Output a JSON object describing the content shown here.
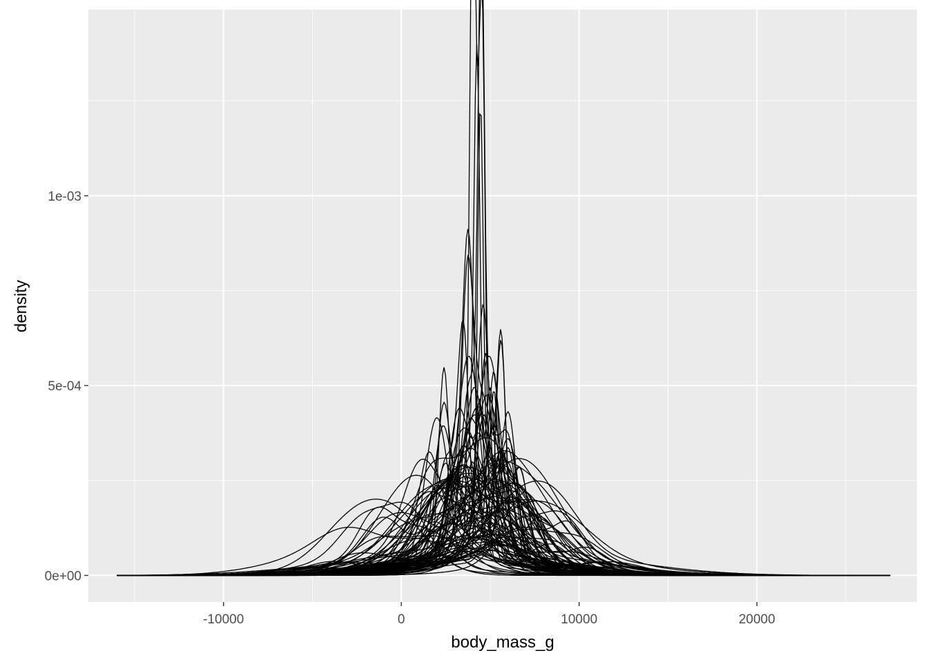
{
  "chart_data": {
    "type": "line",
    "subtype": "density",
    "title": "",
    "xlabel": "body_mass_g",
    "ylabel": "density",
    "xlim": [
      -17600,
      29000
    ],
    "ylim": [
      -7e-05,
      0.00149
    ],
    "x_ticks": [
      -10000,
      0,
      10000,
      20000
    ],
    "x_tick_labels": [
      "-10000",
      "0",
      "10000",
      "20000"
    ],
    "y_ticks": [
      0,
      0.0005,
      0.001
    ],
    "y_tick_labels": [
      "0e+00",
      "5e-04",
      "1e-03"
    ],
    "grid": true,
    "legend": "none",
    "line_color": "#000000",
    "panel_background": "#ebebeb",
    "grid_color": "#ffffff",
    "series_count": 100,
    "x_support": [
      -16000,
      27500
    ],
    "series": [
      {
        "values": [
          [
            4000,
            0.00141
          ],
          [
            4300,
            0.00065
          ],
          [
            4550,
            0.00102
          ]
        ]
      },
      {
        "values": [
          [
            4500,
            0.0013
          ],
          [
            3800,
            0.0004
          ],
          [
            5000,
            0.00035
          ]
        ]
      },
      {
        "values": [
          [
            4250,
            0.00121
          ],
          [
            5000,
            0.00044
          ],
          [
            3500,
            0.0003
          ]
        ]
      },
      {
        "values": [
          [
            4450,
            0.0012
          ],
          [
            5200,
            0.00044
          ],
          [
            6600,
            0.00025
          ]
        ]
      },
      {
        "values": [
          [
            3750,
            0.00085
          ],
          [
            5600,
            0.00057
          ],
          [
            2400,
            0.0004
          ]
        ]
      },
      {
        "values": [
          [
            4600,
            0.00065
          ],
          [
            5600,
            0.00058
          ],
          [
            2400,
            0.0005
          ]
        ]
      },
      {
        "values": [
          [
            3700,
            0.00058
          ],
          [
            4500,
            0.0004
          ],
          [
            6000,
            0.0003
          ]
        ]
      },
      {
        "values": [
          [
            3500,
            0.00052
          ],
          [
            5200,
            0.00048
          ],
          [
            2600,
            0.00025
          ]
        ]
      },
      {
        "values": [
          [
            4800,
            0.00046
          ],
          [
            3900,
            0.00038
          ],
          [
            2000,
            0.00022
          ]
        ]
      },
      {
        "values": [
          [
            4400,
            0.00043
          ],
          [
            6000,
            0.0004
          ],
          [
            3000,
            0.00025
          ]
        ]
      },
      {
        "values": [
          [
            2000,
            0.00038
          ],
          [
            4000,
            0.00026
          ],
          [
            5500,
            0.00028
          ]
        ]
      },
      {
        "values": [
          [
            6000,
            0.00032
          ],
          [
            4000,
            0.00028
          ],
          [
            3000,
            0.00022
          ]
        ]
      },
      {
        "values": [
          [
            3200,
            0.00035
          ],
          [
            4800,
            0.0003
          ],
          [
            6500,
            0.0002
          ]
        ]
      },
      {
        "values": [
          [
            5200,
            0.00034
          ],
          [
            3400,
            0.00025
          ],
          [
            7000,
            0.00018
          ]
        ]
      },
      {
        "values": [
          [
            3900,
            0.00031
          ],
          [
            6000,
            0.00029
          ]
        ]
      },
      {
        "values": [
          [
            4600,
            0.00029
          ],
          [
            2800,
            0.00022
          ],
          [
            6400,
            0.0002
          ]
        ]
      },
      {
        "values": [
          [
            3300,
            0.00027
          ],
          [
            5300,
            0.00025
          ]
        ]
      },
      {
        "values": [
          [
            4200,
            0.00026
          ],
          [
            6000,
            0.00022
          ],
          [
            2200,
            0.00018
          ]
        ]
      },
      {
        "values": [
          [
            2500,
            0.00024
          ],
          [
            4700,
            0.00023
          ],
          [
            6300,
            0.00017
          ]
        ]
      },
      {
        "values": [
          [
            5700,
            0.00023
          ],
          [
            3800,
            0.0002
          ],
          [
            1800,
            0.00015
          ]
        ]
      },
      {
        "values": [
          [
            3000,
            0.00022
          ],
          [
            4900,
            0.00021
          ],
          [
            6700,
            0.00016
          ]
        ]
      },
      {
        "values": [
          [
            4100,
            0.00021
          ],
          [
            2600,
            0.00016
          ],
          [
            5900,
            0.00018
          ]
        ]
      },
      {
        "values": [
          [
            7200,
            0.00019
          ],
          [
            4500,
            0.00016
          ]
        ]
      },
      {
        "values": [
          [
            3600,
            0.00019
          ],
          [
            5500,
            0.00017
          ],
          [
            1500,
            0.00013
          ]
        ]
      },
      {
        "values": [
          [
            4300,
            0.00018
          ],
          [
            6800,
            0.00015
          ]
        ]
      },
      {
        "values": [
          [
            2200,
            0.00017
          ],
          [
            4000,
            0.00016
          ],
          [
            5700,
            0.00014
          ]
        ]
      },
      {
        "values": [
          [
            5000,
            0.00017
          ],
          [
            7500,
            0.00012
          ]
        ]
      },
      {
        "values": [
          [
            3400,
            0.00016
          ],
          [
            6200,
            0.00015
          ]
        ]
      },
      {
        "values": [
          [
            1800,
            0.00016
          ],
          [
            4600,
            0.00014
          ]
        ]
      },
      {
        "values": [
          [
            3800,
            0.00015
          ],
          [
            5800,
            0.00014
          ],
          [
            8000,
            0.0001
          ]
        ]
      },
      {
        "values": [
          [
            4400,
            0.00015
          ],
          [
            2000,
            0.00012
          ]
        ]
      },
      {
        "values": [
          [
            6100,
            0.00014
          ],
          [
            3300,
            0.00013
          ]
        ]
      },
      {
        "values": [
          [
            2800,
            0.00014
          ],
          [
            5100,
            0.00013
          ]
        ]
      },
      {
        "values": [
          [
            4900,
            0.00013
          ],
          [
            7000,
            0.00011
          ]
        ]
      },
      {
        "values": [
          [
            3600,
            0.00013
          ],
          [
            1200,
            0.0001
          ]
        ]
      },
      {
        "values": [
          [
            7300,
            0.00018
          ],
          [
            5000,
            0.00012
          ]
        ]
      },
      {
        "values": [
          [
            8500,
            0.00014
          ],
          [
            6000,
            0.00012
          ]
        ]
      },
      {
        "values": [
          [
            8000,
            0.00012
          ],
          [
            5200,
            0.00013
          ]
        ]
      },
      {
        "values": [
          [
            9000,
            0.00011
          ],
          [
            6500,
            0.0001
          ]
        ]
      },
      {
        "values": [
          [
            7800,
            0.00011
          ],
          [
            4500,
            9e-05
          ]
        ]
      },
      {
        "values": [
          [
            8800,
            0.0001
          ],
          [
            6200,
            9e-05
          ]
        ]
      },
      {
        "values": [
          [
            -2500,
            0.00011
          ],
          [
            0,
            0.0001
          ]
        ]
      },
      {
        "values": [
          [
            0,
            0.00015
          ],
          [
            1800,
            0.00012
          ]
        ]
      },
      {
        "values": [
          [
            -2000,
            0.00012
          ],
          [
            500,
            0.00013
          ]
        ]
      },
      {
        "values": [
          [
            -1000,
            0.00012
          ],
          [
            2000,
            0.00011
          ]
        ]
      },
      {
        "values": [
          [
            -1500,
            0.0001
          ],
          [
            1000,
            0.0001
          ]
        ]
      },
      {
        "values": [
          [
            2500,
            0.00011
          ],
          [
            4200,
            0.0001
          ]
        ]
      },
      {
        "values": [
          [
            1500,
            0.00012
          ],
          [
            3500,
            0.00011
          ]
        ]
      },
      {
        "values": [
          [
            3000,
            0.00011
          ],
          [
            5500,
            0.0001
          ]
        ]
      },
      {
        "values": [
          [
            4700,
            0.00011
          ],
          [
            6800,
            0.0001
          ]
        ]
      },
      {
        "values": [
          [
            5600,
            0.0001
          ],
          [
            3200,
            9e-05
          ]
        ]
      },
      {
        "values": [
          [
            2200,
            0.0001
          ],
          [
            4300,
            9e-05
          ]
        ]
      },
      {
        "values": [
          [
            6400,
            0.0001
          ],
          [
            8200,
            8e-05
          ]
        ]
      },
      {
        "values": [
          [
            1000,
            9e-05
          ],
          [
            3600,
            9e-05
          ]
        ]
      },
      {
        "values": [
          [
            4000,
            9e-05
          ],
          [
            6000,
            8e-05
          ]
        ]
      },
      {
        "values": [
          [
            -500,
            9e-05
          ],
          [
            2600,
            8e-05
          ]
        ]
      },
      {
        "values": [
          [
            5300,
            9e-05
          ],
          [
            7600,
            8e-05
          ]
        ]
      },
      {
        "values": [
          [
            3400,
            8e-05
          ],
          [
            5000,
            8e-05
          ]
        ]
      },
      {
        "values": [
          [
            2000,
            8e-05
          ],
          [
            4500,
            8e-05
          ]
        ]
      },
      {
        "values": [
          [
            7000,
            8e-05
          ],
          [
            9500,
            7e-05
          ]
        ]
      },
      {
        "values": [
          [
            4200,
            8e-05
          ],
          [
            6600,
            7e-05
          ]
        ]
      },
      {
        "values": [
          [
            1200,
            8e-05
          ],
          [
            3000,
            7e-05
          ]
        ]
      },
      {
        "values": [
          [
            5800,
            7e-05
          ],
          [
            3800,
            7e-05
          ]
        ]
      },
      {
        "values": [
          [
            4600,
            7e-05
          ],
          [
            8400,
            6e-05
          ]
        ]
      },
      {
        "values": [
          [
            2600,
            7e-05
          ],
          [
            5400,
            7e-05
          ]
        ]
      },
      {
        "values": [
          [
            3600,
            7e-05
          ],
          [
            6200,
            6e-05
          ]
        ]
      },
      {
        "values": [
          [
            -3000,
            6e-05
          ],
          [
            1500,
            6e-05
          ]
        ]
      },
      {
        "values": [
          [
            6800,
            6e-05
          ],
          [
            10000,
            5e-05
          ]
        ]
      },
      {
        "values": [
          [
            4400,
            6e-05
          ],
          [
            2200,
            6e-05
          ]
        ]
      },
      {
        "values": [
          [
            5000,
            6e-05
          ],
          [
            7800,
            5e-05
          ]
        ]
      },
      {
        "values": [
          [
            3000,
            6e-05
          ],
          [
            500,
            5e-05
          ]
        ]
      },
      {
        "values": [
          [
            4800,
            5e-05
          ],
          [
            8800,
            5e-05
          ]
        ]
      },
      {
        "values": [
          [
            1800,
            5e-05
          ],
          [
            -1500,
            5e-05
          ]
        ]
      },
      {
        "values": [
          [
            6000,
            5e-05
          ],
          [
            10500,
            4e-05
          ]
        ]
      },
      {
        "values": [
          [
            3800,
            5e-05
          ],
          [
            -500,
            4e-05
          ]
        ]
      },
      {
        "values": [
          [
            5400,
            4e-05
          ],
          [
            9800,
            4e-05
          ]
        ]
      },
      {
        "values": [
          [
            2800,
            4e-05
          ],
          [
            -2500,
            4e-05
          ]
        ]
      },
      {
        "values": [
          [
            4300,
            4e-05
          ]
        ]
      },
      {
        "values": [
          [
            5600,
            4e-05
          ],
          [
            11000,
            3e-05
          ]
        ]
      },
      {
        "values": [
          [
            3200,
            4e-05
          ],
          [
            -3500,
            3e-05
          ]
        ]
      },
      {
        "values": [
          [
            4900,
            3e-05
          ],
          [
            12000,
            3e-05
          ]
        ]
      },
      {
        "values": [
          [
            3600,
            3e-05
          ],
          [
            -4000,
            3e-05
          ]
        ]
      },
      {
        "values": [
          [
            4500,
            3e-05
          ]
        ]
      },
      {
        "values": [
          [
            4100,
            3e-05
          ],
          [
            11500,
            2e-05
          ]
        ]
      },
      {
        "values": [
          [
            4700,
            2e-05
          ],
          [
            -5000,
            2e-05
          ]
        ]
      },
      {
        "values": [
          [
            4200,
            2e-05
          ]
        ]
      },
      {
        "values": [
          [
            1500,
            0.00021
          ],
          [
            3800,
            0.00018
          ]
        ]
      },
      {
        "values": [
          [
            2300,
            0.00028
          ],
          [
            4200,
            0.0002
          ]
        ]
      },
      {
        "values": [
          [
            5600,
            0.00027
          ],
          [
            6700,
            0.00022
          ]
        ]
      },
      {
        "values": [
          [
            3000,
            0.00019
          ],
          [
            4400,
            0.00024
          ]
        ]
      },
      {
        "values": [
          [
            4700,
            0.00031
          ],
          [
            5200,
            0.00026
          ]
        ]
      },
      {
        "values": [
          [
            3500,
            0.00033
          ],
          [
            4100,
            0.00028
          ]
        ]
      },
      {
        "values": [
          [
            2700,
            0.0002
          ],
          [
            6000,
            0.00021
          ]
        ]
      },
      {
        "values": [
          [
            6300,
            0.00017
          ],
          [
            4000,
            0.00019
          ]
        ]
      },
      {
        "values": [
          [
            1000,
            0.00014
          ],
          [
            2400,
            0.00015
          ]
        ]
      },
      {
        "values": [
          [
            7000,
            0.00014
          ],
          [
            5200,
            0.00018
          ]
        ]
      },
      {
        "values": [
          [
            3300,
            0.00023
          ],
          [
            5000,
            0.00021
          ]
        ]
      },
      {
        "values": [
          [
            4500,
            0.00024
          ],
          [
            3100,
            0.0002
          ]
        ]
      },
      {
        "values": [
          [
            5400,
            0.00022
          ],
          [
            6900,
            0.00016
          ]
        ]
      },
      {
        "values": [
          [
            2000,
            0.00019
          ],
          [
            3700,
            0.00024
          ]
        ]
      }
    ]
  }
}
